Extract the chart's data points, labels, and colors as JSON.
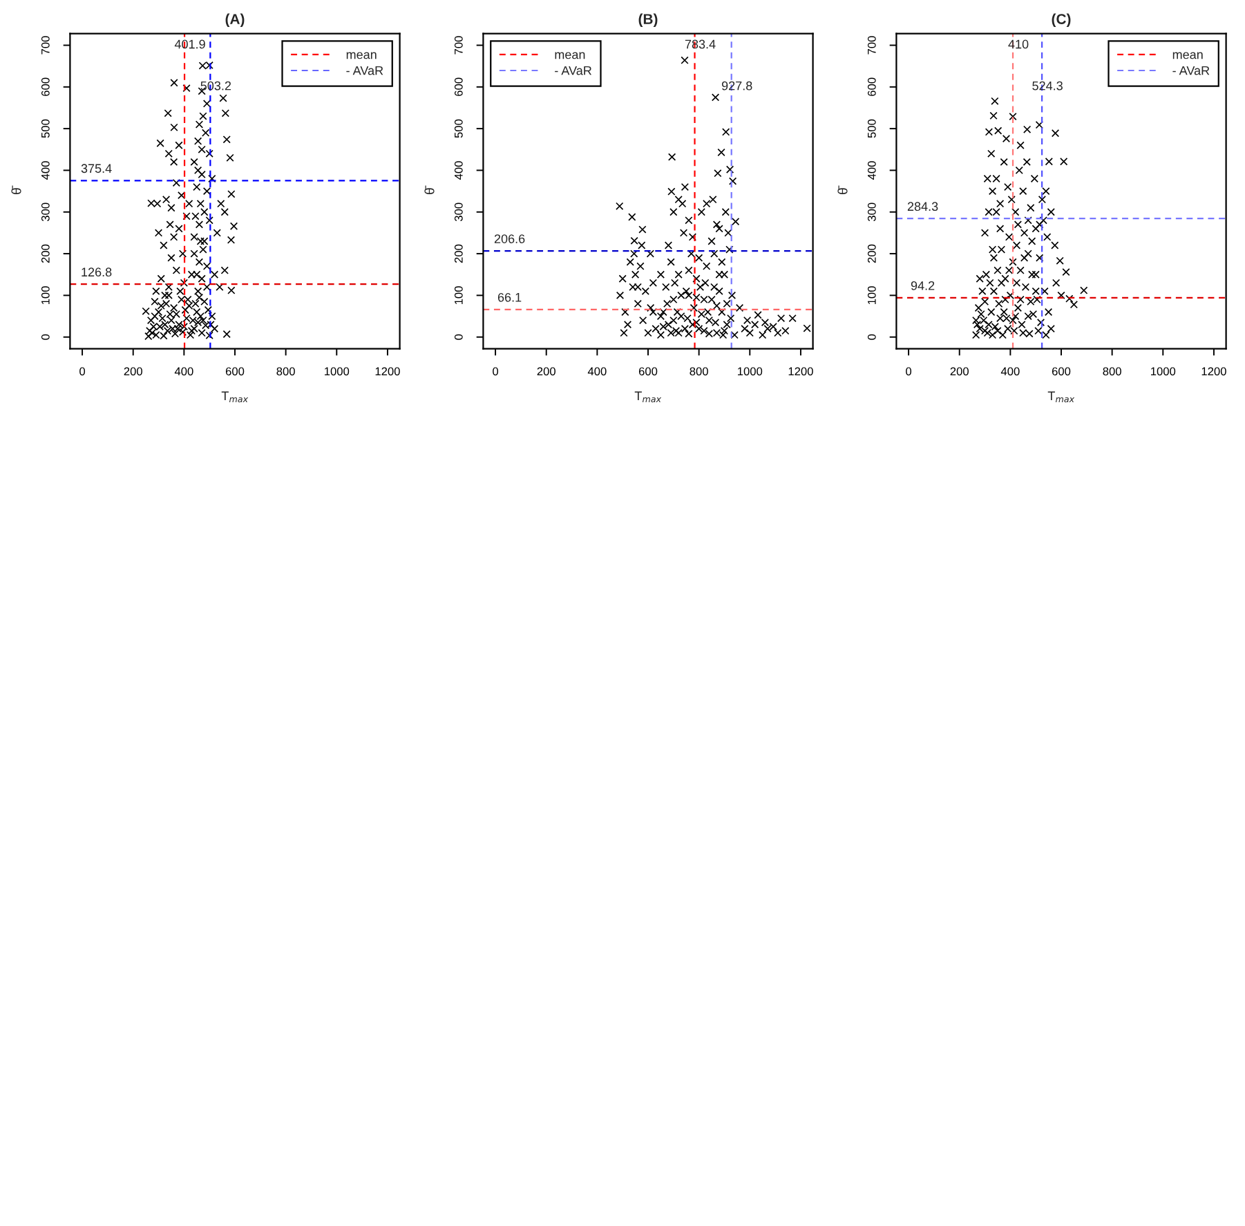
{
  "chart_data": [
    {
      "type": "scatter",
      "title": "(A)",
      "xlabel": "T$_{max}$",
      "ylabel": "θ̄",
      "xlim": [
        -48,
        1248
      ],
      "ylim": [
        -28,
        728
      ],
      "xticks": [
        0,
        200,
        400,
        600,
        800,
        1000,
        1200
      ],
      "yticks": [
        0,
        100,
        200,
        300,
        400,
        500,
        600,
        700
      ],
      "marker": "cross",
      "legend": "top right",
      "series": [
        {
          "color": "#000000",
          "x": [
            260,
            275,
            290,
            305,
            320,
            335,
            350,
            365,
            380,
            395,
            410,
            425,
            440,
            455,
            470,
            485,
            500,
            270,
            300,
            330,
            360,
            390,
            420,
            450,
            480,
            510,
            520,
            290,
            310,
            340,
            370,
            400,
            430,
            460,
            490,
            520,
            540,
            560,
            350,
            440,
            475,
            300,
            320,
            345,
            360,
            380,
            410,
            440,
            460,
            480,
            500,
            530,
            560,
            585,
            596,
            295,
            330,
            350,
            370,
            390,
            420,
            450,
            470,
            490,
            510,
            545,
            586,
            271,
            340,
            360,
            380,
            440,
            455,
            470,
            485,
            500,
            307,
            568,
            581,
            337,
            361,
            460,
            475,
            490,
            410,
            361,
            473,
            500,
            554,
            563,
            470,
            568,
            586,
            250,
            280,
            315,
            345,
            375,
            405,
            435,
            465,
            495,
            285,
            455,
            470,
            445,
            465,
            325,
            395,
            265,
            285,
            310,
            325,
            340,
            355,
            370,
            385,
            400,
            415,
            430,
            445,
            460,
            475,
            490,
            505,
            450,
            465,
            480,
            455
          ],
          "values": [
            2,
            10,
            5,
            25,
            3,
            15,
            40,
            8,
            30,
            12,
            45,
            5,
            20,
            35,
            10,
            28,
            4,
            40,
            60,
            80,
            70,
            90,
            75,
            60,
            85,
            50,
            20,
            110,
            140,
            120,
            160,
            130,
            150,
            180,
            170,
            150,
            120,
            160,
            190,
            200,
            210,
            250,
            220,
            270,
            240,
            260,
            290,
            240,
            270,
            230,
            280,
            250,
            300,
            233,
            266,
            320,
            330,
            310,
            370,
            340,
            320,
            360,
            390,
            350,
            380,
            320,
            343,
            321,
            440,
            420,
            460,
            420,
            470,
            450,
            490,
            440,
            465,
            474,
            430,
            537,
            503,
            510,
            530,
            560,
            597,
            610,
            651,
            652,
            573,
            537,
            590,
            7,
            112,
            62,
            25,
            45,
            55,
            20,
            65,
            40,
            50,
            65,
            85,
            110,
            140,
            290,
            320,
            100,
            200,
            15,
            50,
            75,
            30,
            100,
            20,
            55,
            110,
            25,
            90,
            15,
            80,
            95,
            40,
            120,
            30,
            150,
            230,
            300,
            400
          ]
        },
        {
          "type": "line",
          "name": "mean",
          "color": "#ff0000",
          "line_style": "dashed"
        },
        {
          "type": "line",
          "name": "- AVaR",
          "color": "#6666ff",
          "line_style": "dashed"
        }
      ],
      "ref_lines": [
        {
          "axis": "x",
          "value": 401.9,
          "label": "401.9",
          "color": "#ff0000",
          "line_style": "dashed"
        },
        {
          "axis": "x",
          "value": 503.2,
          "label": "503.2",
          "color": "#0000ff",
          "line_style": "dashed"
        },
        {
          "axis": "y",
          "value": 375.4,
          "label": "375.4",
          "color": "#0000ff",
          "line_style": "dashed"
        },
        {
          "axis": "y",
          "value": 126.8,
          "label": "126.8",
          "color": "#e00000",
          "line_style": "dashed"
        }
      ]
    },
    {
      "type": "scatter",
      "title": "(B)",
      "xlabel": "T$_{max}$",
      "ylabel": "θ̄",
      "xlim": [
        -48,
        1248
      ],
      "ylim": [
        -28,
        728
      ],
      "xticks": [
        0,
        200,
        400,
        600,
        800,
        1000,
        1200
      ],
      "yticks": [
        0,
        100,
        200,
        300,
        400,
        500,
        600,
        700
      ],
      "marker": "cross",
      "legend": "top left",
      "series": [
        {
          "color": "#000000",
          "x": [
            490,
            500,
            510,
            520,
            530,
            540,
            550,
            560,
            570,
            580,
            590,
            600,
            610,
            620,
            630,
            505,
            545,
            575,
            609,
            488,
            537,
            578,
            546,
            650,
            660,
            670,
            680,
            690,
            700,
            710,
            720,
            730,
            740,
            750,
            760,
            770,
            780,
            790,
            800,
            810,
            820,
            830,
            840,
            850,
            860,
            870,
            880,
            890,
            900,
            910,
            920,
            930,
            940,
            700,
            720,
            745,
            760,
            830,
            855,
            870,
            890,
            905,
            915,
            735,
            692,
            694,
            744,
            865,
            906,
            888,
            874,
            922,
            933,
            944,
            775,
            800,
            860,
            680,
            650,
            755,
            825,
            880,
            960,
            980,
            1000,
            1020,
            1032,
            1050,
            1070,
            1092,
            1110,
            1123,
            1140,
            1168,
            1225,
            990,
            1060,
            700,
            720,
            790,
            810,
            840,
            870,
            900,
            760,
            650,
            620,
            660,
            675,
            690,
            705,
            715,
            730,
            745,
            760,
            775,
            790,
            805,
            820,
            835,
            850,
            865,
            880,
            895,
            910,
            925,
            560
          ],
          "values": [
            100,
            140,
            60,
            30,
            180,
            120,
            150,
            80,
            170,
            40,
            110,
            10,
            70,
            130,
            20,
            10,
            200,
            220,
            200,
            314,
            288,
            258,
            231,
            5,
            60,
            120,
            30,
            180,
            90,
            15,
            150,
            50,
            250,
            110,
            8,
            200,
            70,
            140,
            20,
            300,
            90,
            170,
            40,
            230,
            120,
            10,
            260,
            60,
            150,
            30,
            210,
            100,
            5,
            300,
            330,
            360,
            280,
            320,
            330,
            270,
            180,
            300,
            250,
            320,
            349,
            432,
            664,
            575,
            492,
            443,
            393,
            402,
            374,
            277,
            240,
            190,
            200,
            220,
            150,
            45,
            130,
            110,
            70,
            20,
            10,
            30,
            53,
            5,
            20,
            25,
            10,
            45,
            15,
            45,
            21,
            40,
            35,
            40,
            10,
            35,
            55,
            8,
            75,
            15,
            100,
            50,
            60,
            25,
            80,
            10,
            130,
            60,
            100,
            20,
            160,
            30,
            95,
            120,
            15,
            60,
            90,
            35,
            150,
            5,
            80,
            45,
            120
          ]
        },
        {
          "type": "line",
          "name": "mean",
          "color": "#ff0000",
          "line_style": "dashed"
        },
        {
          "type": "line",
          "name": "- AVaR",
          "color": "#7777ff",
          "line_style": "dashed"
        }
      ],
      "ref_lines": [
        {
          "axis": "x",
          "value": 783.4,
          "label": "783.4",
          "color": "#ff0000",
          "line_style": "dashed"
        },
        {
          "axis": "x",
          "value": 927.8,
          "label": "927.8",
          "color": "#7777ff",
          "line_style": "dashed"
        },
        {
          "axis": "y",
          "value": 206.6,
          "label": "206.6",
          "color": "#0000cc",
          "line_style": "dashed"
        },
        {
          "axis": "y",
          "value": 66.1,
          "label": "66.1",
          "color": "#ff6666",
          "line_style": "dashed"
        }
      ]
    },
    {
      "type": "scatter",
      "title": "(C)",
      "xlabel": "T$_{max}$",
      "ylabel": "θ̄",
      "xlim": [
        -48,
        1248
      ],
      "ylim": [
        -28,
        728
      ],
      "xticks": [
        0,
        200,
        400,
        600,
        800,
        1000,
        1200
      ],
      "yticks": [
        0,
        100,
        200,
        300,
        400,
        500,
        600,
        700
      ],
      "marker": "cross",
      "legend": "top right",
      "series": [
        {
          "color": "#000000",
          "x": [
            265,
            280,
            295,
            310,
            325,
            340,
            355,
            370,
            385,
            400,
            415,
            430,
            445,
            460,
            475,
            490,
            505,
            520,
            535,
            550,
            560,
            275,
            290,
            305,
            320,
            335,
            350,
            365,
            380,
            395,
            410,
            425,
            440,
            455,
            470,
            485,
            500,
            515,
            530,
            545,
            560,
            575,
            300,
            315,
            330,
            345,
            360,
            375,
            390,
            405,
            420,
            435,
            450,
            465,
            480,
            495,
            525,
            540,
            310,
            325,
            339,
            334,
            410,
            316,
            352,
            466,
            514,
            577,
            610,
            552,
            384,
            689,
            650,
            632,
            619,
            595,
            580,
            600,
            440,
            360,
            280,
            500,
            430,
            380,
            270,
            300,
            330,
            360,
            390,
            420,
            450,
            480,
            510,
            540,
            265,
            285,
            300,
            315,
            335,
            350,
            365,
            375,
            395,
            410,
            425,
            440,
            455,
            470,
            485,
            500,
            515,
            330,
            345,
            470
          ],
          "values": [
            5,
            20,
            40,
            10,
            60,
            25,
            80,
            5,
            45,
            100,
            15,
            70,
            30,
            120,
            8,
            55,
            90,
            35,
            110,
            60,
            20,
            70,
            110,
            150,
            130,
            190,
            160,
            210,
            140,
            240,
            180,
            220,
            160,
            250,
            200,
            230,
            260,
            190,
            280,
            240,
            300,
            220,
            250,
            300,
            350,
            380,
            320,
            420,
            360,
            330,
            300,
            400,
            350,
            420,
            310,
            380,
            330,
            350,
            380,
            440,
            566,
            531,
            529,
            492,
            495,
            498,
            509,
            489,
            421,
            421,
            476,
            112,
            78,
            92,
            156,
            183,
            130,
            100,
            460,
            260,
            140,
            150,
            270,
            90,
            30,
            15,
            5,
            45,
            20,
            50,
            10,
            85,
            15,
            5,
            40,
            55,
            85,
            30,
            110,
            15,
            130,
            60,
            160,
            40,
            130,
            90,
            190,
            50,
            150,
            110,
            270,
            210,
            300,
            280
          ]
        },
        {
          "type": "line",
          "name": "mean",
          "color": "#ff0000",
          "line_style": "dashed"
        },
        {
          "type": "line",
          "name": "- AVaR",
          "color": "#7777ff",
          "line_style": "dashed"
        }
      ],
      "ref_lines": [
        {
          "axis": "x",
          "value": 410,
          "label": "410",
          "color": "#ff7777",
          "line_style": "dashed"
        },
        {
          "axis": "x",
          "value": 524.3,
          "label": "524.3",
          "color": "#5555ff",
          "line_style": "dashed"
        },
        {
          "axis": "y",
          "value": 284.3,
          "label": "284.3",
          "color": "#7777ff",
          "line_style": "dashed"
        },
        {
          "axis": "y",
          "value": 94.2,
          "label": "94.2",
          "color": "#e00000",
          "line_style": "dashed"
        }
      ]
    }
  ]
}
